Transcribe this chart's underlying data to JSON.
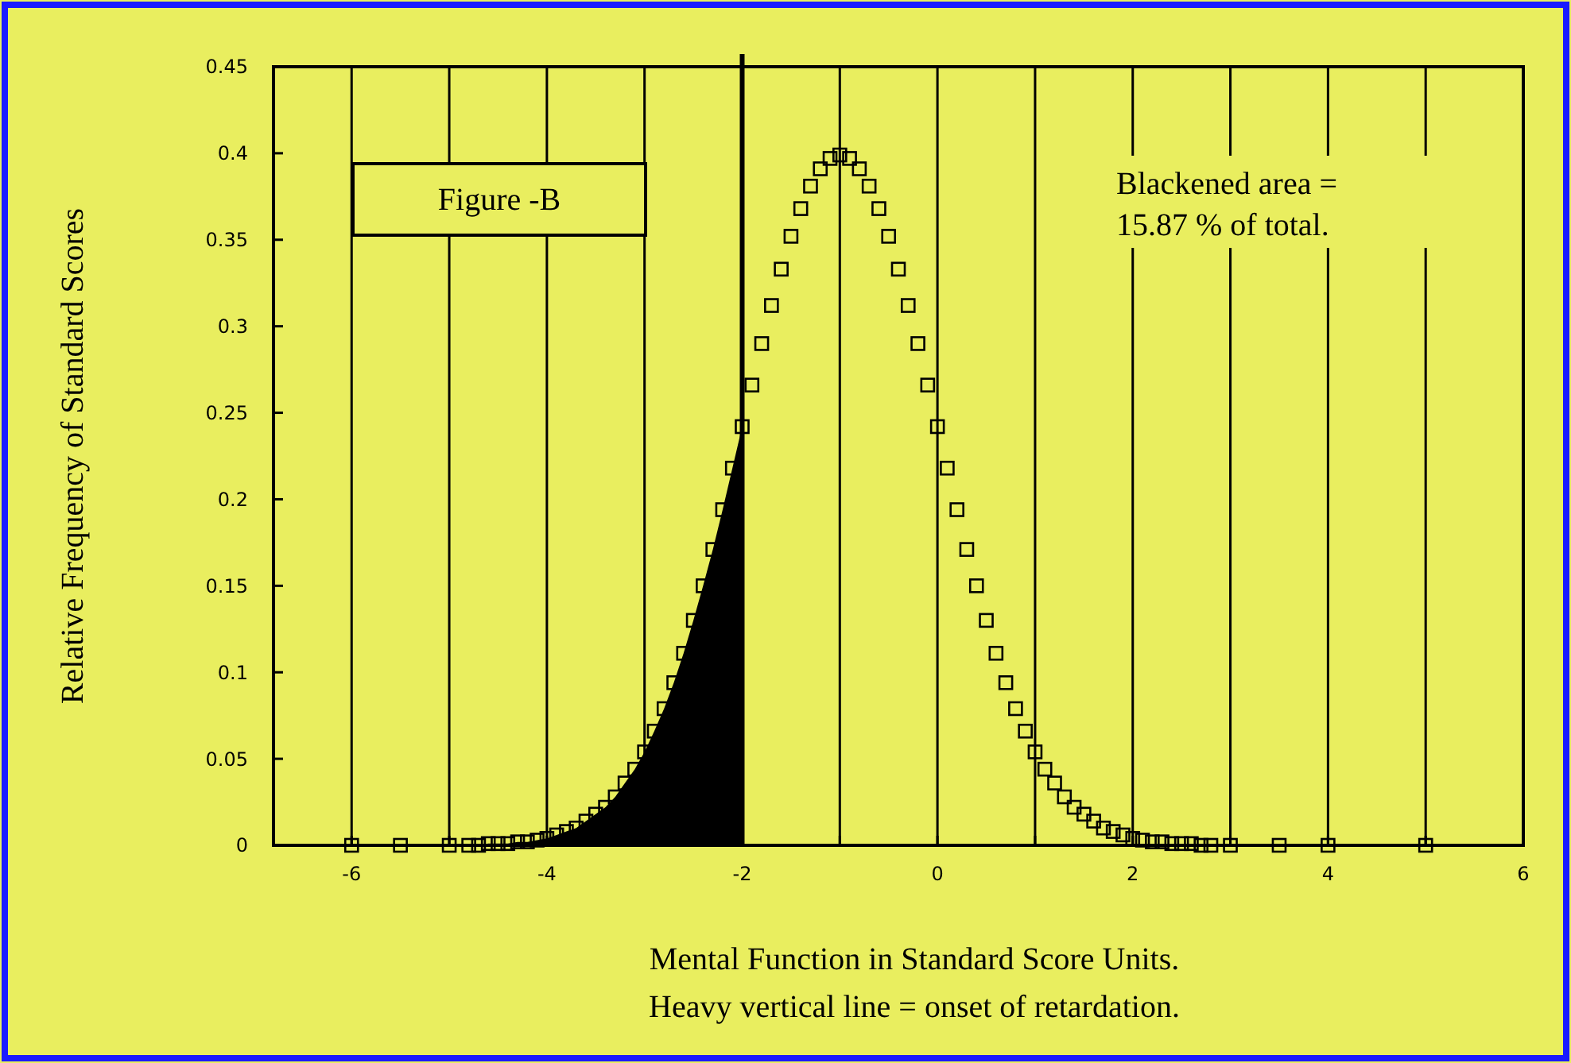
{
  "chart_data": {
    "type": "scatter",
    "xlabel": "Mental Function in Standard Score Units.",
    "ylabel": "Relative Frequency of Standard Scores",
    "annotations": [
      "Figure -B",
      "Blackened area =\n15.87 % of total.",
      "Heavy vertical line = onset of retardation."
    ],
    "xlim": [
      -6.8,
      6
    ],
    "ylim": [
      0,
      0.45
    ],
    "xticks": [
      -6,
      {
        "value": -5,
        "label": null
      },
      -4,
      {
        "value": -3,
        "label": null
      },
      -2,
      {
        "value": -1,
        "label": null
      },
      0,
      {
        "value": 1,
        "label": null
      },
      2,
      {
        "value": 3,
        "label": null
      },
      4,
      {
        "value": 5,
        "label": null
      },
      6
    ],
    "yticks": [
      0,
      0.05,
      0.1,
      0.15,
      0.2,
      0.25,
      0.3,
      0.35,
      0.4,
      0.45
    ],
    "grid": "x",
    "ref_lines": [
      {
        "axis": "x",
        "value": -2,
        "color": "#000000"
      }
    ],
    "series": [
      {
        "type": "area",
        "color": "#000000",
        "x": [
          -4.8,
          -4.7,
          -4.6,
          -4.5,
          -4.4,
          -4.3,
          -4.2,
          -4.1,
          -4.0,
          -3.9,
          -3.8,
          -3.7,
          -3.6,
          -3.5,
          -3.4,
          -3.3,
          -3.2,
          -3.1,
          -3.0,
          -2.9,
          -2.8,
          -2.7,
          -2.6,
          -2.5,
          -2.4,
          -2.3,
          -2.2,
          -2.1,
          -2.0
        ],
        "values": [
          0.0,
          0.0,
          0.001,
          0.001,
          0.001,
          0.002,
          0.002,
          0.003,
          0.004,
          0.006,
          0.008,
          0.01,
          0.014,
          0.018,
          0.022,
          0.028,
          0.036,
          0.044,
          0.054,
          0.066,
          0.079,
          0.094,
          0.111,
          0.13,
          0.15,
          0.171,
          0.194,
          0.218,
          0.242
        ]
      },
      {
        "color": "#000000",
        "marker": "square",
        "x": [
          -6,
          -5.5,
          -5,
          -4.8,
          -4.7,
          -4.6,
          -4.5,
          -4.4,
          -4.3,
          -4.2,
          -4.1,
          -4.0,
          -3.9,
          -3.8,
          -3.7,
          -3.6,
          -3.5,
          -3.4,
          -3.3,
          -3.2,
          -3.1,
          -3.0,
          -2.9,
          -2.8,
          -2.7,
          -2.6,
          -2.5,
          -2.4,
          -2.3,
          -2.2,
          -2.1,
          -2.0,
          -1.9,
          -1.8,
          -1.7,
          -1.6,
          -1.5,
          -1.4,
          -1.3,
          -1.2,
          -1.1,
          -1.0,
          -0.9,
          -0.8,
          -0.7,
          -0.6,
          -0.5,
          -0.4,
          -0.3,
          -0.2,
          -0.1,
          0.0,
          0.1,
          0.2,
          0.3,
          0.4,
          0.5,
          0.6,
          0.7,
          0.8,
          0.9,
          1.0,
          1.1,
          1.2,
          1.3,
          1.4,
          1.5,
          1.6,
          1.7,
          1.8,
          1.9,
          2.0,
          2.1,
          2.2,
          2.3,
          2.4,
          2.5,
          2.6,
          2.7,
          2.8,
          3.0,
          3.5,
          4,
          5
        ],
        "values": [
          0,
          0,
          0,
          0.0,
          0.0,
          0.001,
          0.001,
          0.001,
          0.002,
          0.002,
          0.003,
          0.004,
          0.006,
          0.008,
          0.01,
          0.014,
          0.018,
          0.022,
          0.028,
          0.036,
          0.044,
          0.054,
          0.066,
          0.079,
          0.094,
          0.111,
          0.13,
          0.15,
          0.171,
          0.194,
          0.218,
          0.242,
          0.266,
          0.29,
          0.312,
          0.333,
          0.352,
          0.368,
          0.381,
          0.391,
          0.397,
          0.399,
          0.397,
          0.391,
          0.381,
          0.368,
          0.352,
          0.333,
          0.312,
          0.29,
          0.266,
          0.242,
          0.218,
          0.194,
          0.171,
          0.15,
          0.13,
          0.111,
          0.094,
          0.079,
          0.066,
          0.054,
          0.044,
          0.036,
          0.028,
          0.022,
          0.018,
          0.014,
          0.01,
          0.008,
          0.006,
          0.004,
          0.003,
          0.002,
          0.002,
          0.001,
          0.001,
          0.001,
          0.0,
          0.0,
          0.0,
          0,
          0,
          0
        ]
      }
    ]
  }
}
